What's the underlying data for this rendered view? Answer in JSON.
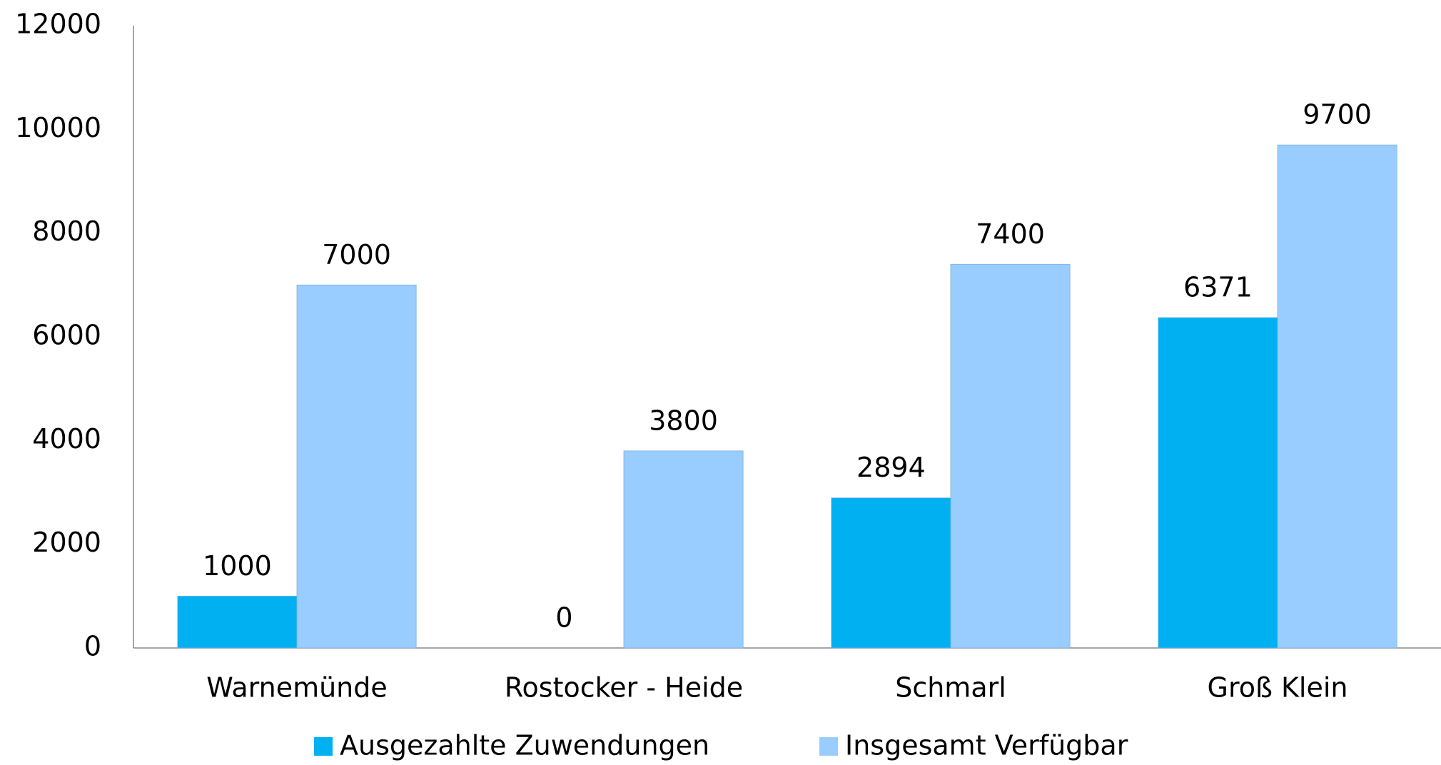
{
  "chart_data": {
    "type": "bar",
    "categories": [
      "Warnemünde",
      "Rostocker - Heide",
      "Schmarl",
      "Groß Klein"
    ],
    "series": [
      {
        "name": "Ausgezahlte Zuwendungen",
        "color": "#00b0f0",
        "values": [
          1000,
          0,
          2894,
          6371
        ]
      },
      {
        "name": "Insgesamt Verfügbar",
        "color": "#99ccff",
        "values": [
          7000,
          3800,
          7400,
          9700
        ]
      }
    ],
    "ylim": [
      0,
      12000
    ],
    "yticks": [
      0,
      2000,
      4000,
      6000,
      8000,
      10000,
      12000
    ],
    "grid": false,
    "legend": "bottom"
  }
}
